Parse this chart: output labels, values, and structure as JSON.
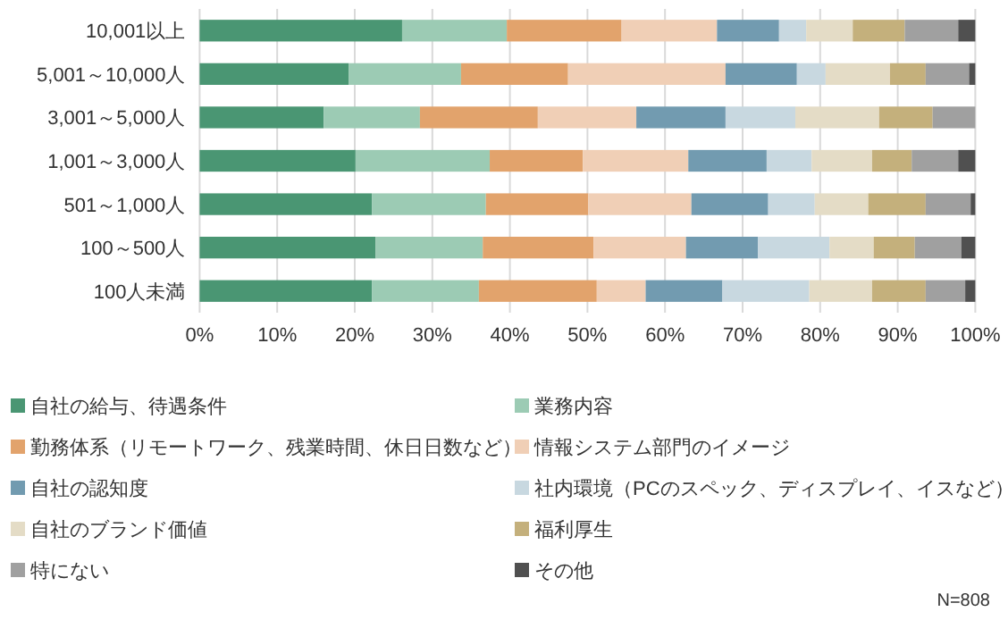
{
  "chart_data": {
    "type": "bar",
    "orientation": "horizontal",
    "stacked": true,
    "categories": [
      "10,001以上",
      "5,001～10,000人",
      "3,001～5,000人",
      "1,001～3,000人",
      "501～1,000人",
      "100～500人",
      "100人未満"
    ],
    "series": [
      {
        "name": "自社の給与、待遇条件",
        "color": "#4a9673",
        "values": [
          26.1,
          19.2,
          16.0,
          20.1,
          22.2,
          22.7,
          22.2
        ]
      },
      {
        "name": "業務内容",
        "color": "#9ccbb4",
        "values": [
          13.5,
          14.5,
          12.4,
          17.3,
          14.7,
          13.8,
          13.8
        ]
      },
      {
        "name": "勤務体系（リモートワーク、残業時間、休日日数など）",
        "color": "#e2a36c",
        "values": [
          14.8,
          13.8,
          15.2,
          12.0,
          13.2,
          14.3,
          15.2
        ]
      },
      {
        "name": "情報システム部門のイメージ",
        "color": "#f0cfb6",
        "values": [
          12.3,
          20.3,
          12.7,
          13.6,
          13.3,
          11.9,
          6.3
        ]
      },
      {
        "name": "自社の認知度",
        "color": "#729bb0",
        "values": [
          8.0,
          9.2,
          11.5,
          10.1,
          9.9,
          9.3,
          9.9
        ]
      },
      {
        "name": "社内環境（PCのスペック、ディスプレイ、イスなど）",
        "color": "#c8d8e0",
        "values": [
          3.5,
          3.7,
          9.0,
          5.8,
          6.0,
          9.2,
          11.2
        ]
      },
      {
        "name": "自社のブランド価値",
        "color": "#e4dcc6",
        "values": [
          6.0,
          8.3,
          10.8,
          7.8,
          6.9,
          5.7,
          8.1
        ]
      },
      {
        "name": "福利厚生",
        "color": "#c4b07c",
        "values": [
          6.7,
          4.6,
          6.9,
          5.1,
          7.4,
          5.3,
          6.9
        ]
      },
      {
        "name": "特にない",
        "color": "#a0a0a0",
        "values": [
          6.9,
          5.6,
          5.5,
          6.0,
          5.8,
          6.0,
          5.1
        ]
      },
      {
        "name": "その他",
        "color": "#505050",
        "values": [
          2.2,
          0.8,
          0,
          2.2,
          0.6,
          1.8,
          1.3
        ]
      }
    ],
    "xlim": [
      0,
      100
    ],
    "xticks": [
      {
        "value": 0,
        "label": "0%"
      },
      {
        "value": 10,
        "label": "10%"
      },
      {
        "value": 20,
        "label": "20%"
      },
      {
        "value": 30,
        "label": "30%"
      },
      {
        "value": 40,
        "label": "40%"
      },
      {
        "value": 50,
        "label": "50%"
      },
      {
        "value": 60,
        "label": "60%"
      },
      {
        "value": 70,
        "label": "70%"
      },
      {
        "value": 80,
        "label": "80%"
      },
      {
        "value": 90,
        "label": "90%"
      },
      {
        "value": 100,
        "label": "100%"
      }
    ],
    "grid": "x",
    "legend": "bottom",
    "annotations": [
      "N=808"
    ]
  }
}
